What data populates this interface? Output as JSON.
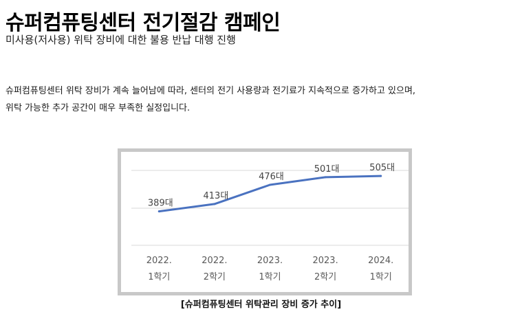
{
  "page": {
    "title": "슈퍼컴퓨팅센터 전기절감 캠페인",
    "subtitle": "미사용(저사용) 위탁 장비에 대한 불용 반납 대행 진행",
    "paragraph_line1": "슈퍼컴퓨팅센터 위탁 장비가 계속 늘어남에 따라, 센터의 전기 사용량과 전기료가 지속적으로 증가하고 있으며,",
    "paragraph_line2": "위탁 가능한 추가 공간이 매우 부족한 실정입니다.",
    "caption": "[슈퍼컴퓨팅센터 위탁관리 장비 증가 추이]"
  },
  "colors": {
    "line": "#4a72c0",
    "gridline": "#d9d9d9",
    "frame_border": "#c8c8c8",
    "label_text": "#444444",
    "axis_text": "#595959"
  },
  "chart_data": {
    "type": "line",
    "categories": [
      [
        "2022.",
        "1학기"
      ],
      [
        "2022.",
        "2학기"
      ],
      [
        "2023.",
        "1학기"
      ],
      [
        "2023.",
        "2학기"
      ],
      [
        "2024.",
        "1학기"
      ]
    ],
    "values": [
      389,
      413,
      476,
      501,
      505
    ],
    "data_labels": [
      "389대",
      "413대",
      "476대",
      "501대",
      "505대"
    ],
    "ylim": [
      280,
      530
    ],
    "grid": true,
    "legend": "none",
    "title": "",
    "xlabel": "",
    "ylabel": ""
  }
}
